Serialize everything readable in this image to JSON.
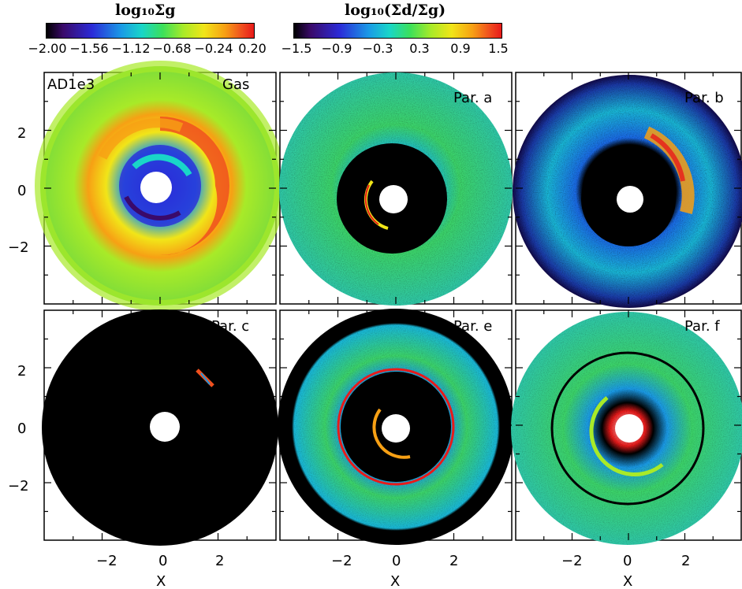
{
  "colorbars": [
    {
      "title": "log₁₀Σg",
      "ticks": [
        "−2.00",
        "−1.56",
        "−1.12",
        "−0.68",
        "−0.24",
        "0.20"
      ]
    },
    {
      "title": "log₁₀(Σd/Σg)",
      "ticks": [
        "−1.5",
        "−0.9",
        "−0.3",
        "0.3",
        "0.9",
        "1.5"
      ]
    }
  ],
  "panels": [
    {
      "label_left": "AD1e3",
      "label_right": "Gas"
    },
    {
      "label_left": "",
      "label_right": "Par. a"
    },
    {
      "label_left": "",
      "label_right": "Par. b"
    },
    {
      "label_left": "",
      "label_right": "Par. c"
    },
    {
      "label_left": "",
      "label_right": "Par. e"
    },
    {
      "label_left": "",
      "label_right": "Par. f"
    }
  ],
  "axes": {
    "xlabel": "X",
    "yticks": [
      "2",
      "0",
      "−2"
    ],
    "xticks": [
      "−2",
      "0",
      "2"
    ]
  },
  "chart_data": {
    "type": "heatmap",
    "layout": "2x3 grid of polar disk maps",
    "panels": [
      "Gas",
      "Par. a",
      "Par. b",
      "Par. c",
      "Par. e",
      "Par. f"
    ],
    "xlabel": "X",
    "xlim": [
      -4,
      4
    ],
    "ylim": [
      -4,
      4
    ],
    "xticks": [
      -2,
      0,
      2
    ],
    "yticks": [
      -2,
      0,
      2
    ],
    "colorscale": [
      "#000000",
      "#3a0a6a",
      "#2b2bd8",
      "#1a9ae6",
      "#19d6c8",
      "#3ce05a",
      "#a8ea28",
      "#f1e518",
      "#f7a014",
      "#f0501e",
      "#e81a1a"
    ],
    "colorbar_gas": {
      "range": [
        -2.0,
        0.2
      ],
      "ticks": [
        -2.0,
        -1.56,
        -1.12,
        -0.68,
        -0.24,
        0.2
      ]
    },
    "colorbar_dust": {
      "range": [
        -1.5,
        1.5
      ],
      "ticks": [
        -1.5,
        -0.9,
        -0.3,
        0.3,
        0.9,
        1.5
      ]
    }
  }
}
